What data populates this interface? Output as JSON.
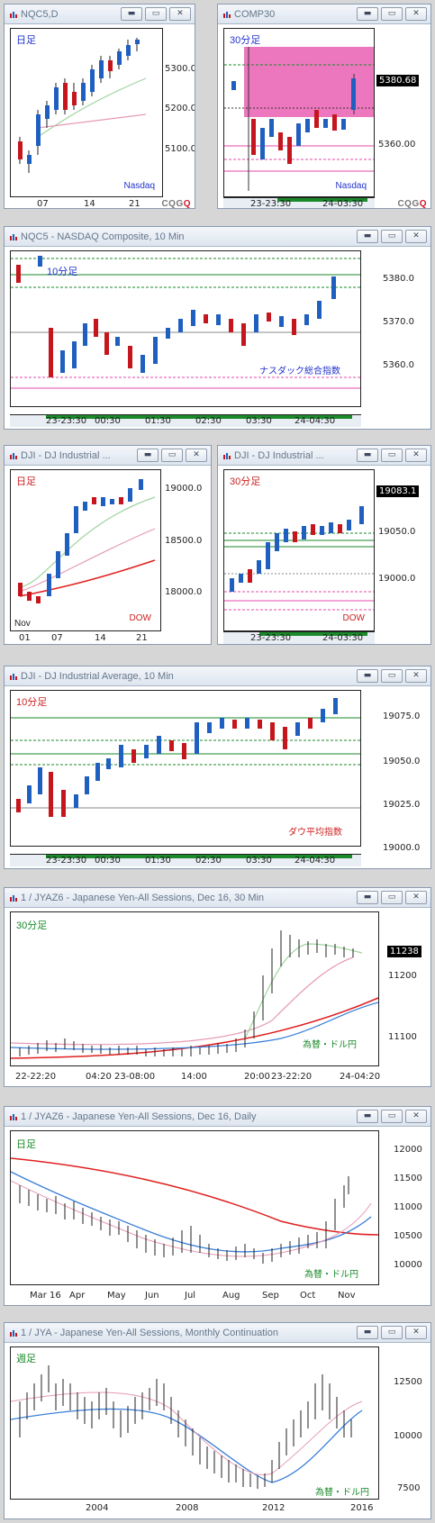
{
  "windows": [
    {
      "id": "w1",
      "title": "NQC5,D",
      "timeframe": "日足",
      "tf_color": "#2233cc",
      "instrument": "Nasdaq",
      "inst_color": "#2233cc",
      "y_labels": [
        "5300.0",
        "5200.0",
        "5100.0"
      ],
      "x_labels": [
        "07",
        "14",
        "21"
      ],
      "price_tag": ""
    },
    {
      "id": "w2",
      "title": "COMP30",
      "timeframe": "30分足",
      "tf_color": "#2233cc",
      "instrument": "Nasdaq",
      "inst_color": "#2233cc",
      "y_labels": [
        "5360.00"
      ],
      "x_labels": [
        "23-23:30",
        "24-03:30"
      ],
      "price_tag": "5380.68"
    },
    {
      "id": "w3",
      "title": "NQC5 - NASDAQ Composite, 10 Min",
      "timeframe": "10分足",
      "tf_color": "#2233cc",
      "instrument": "ナスダック総合指数",
      "inst_color": "#2233cc",
      "y_labels": [
        "5380.0",
        "5370.0",
        "5360.0"
      ],
      "x_labels": [
        "23-23:30",
        "00:30",
        "01:30",
        "02:30",
        "03:30",
        "24-04:30"
      ],
      "price_tag": ""
    },
    {
      "id": "w4",
      "title": "DJI - DJ Industrial ...",
      "timeframe": "日足",
      "tf_color": "#cc2222",
      "instrument": "DOW",
      "inst_color": "#cc2222",
      "y_labels": [
        "19000.0",
        "18500.0",
        "18000.0"
      ],
      "x_labels": [
        "01",
        "07",
        "14",
        "21"
      ],
      "extra_label": "Nov",
      "price_tag": ""
    },
    {
      "id": "w5",
      "title": "DJI - DJ Industrial ...",
      "timeframe": "30分足",
      "tf_color": "#cc2222",
      "instrument": "DOW",
      "inst_color": "#cc2222",
      "y_labels": [
        "19050.0",
        "19000.0"
      ],
      "x_labels": [
        "23-23:30",
        "24-03:30"
      ],
      "price_tag": "19083.1"
    },
    {
      "id": "w6",
      "title": "DJI - DJ Industrial Average, 10 Min",
      "timeframe": "10分足",
      "tf_color": "#cc2222",
      "instrument": "ダウ平均指数",
      "inst_color": "#cc2222",
      "y_labels": [
        "19075.0",
        "19050.0",
        "19025.0",
        "19000.0"
      ],
      "x_labels": [
        "23-23:30",
        "00:30",
        "01:30",
        "02:30",
        "03:30",
        "24-04:30"
      ],
      "price_tag": ""
    },
    {
      "id": "w7",
      "title": "1 / JYAZ6 - Japanese Yen-All Sessions, Dec 16, 30 Min",
      "timeframe": "30分足",
      "tf_color": "#1a8a2a",
      "instrument": "為替・ドル円",
      "inst_color": "#1a8a2a",
      "y_labels": [
        "11200",
        "11100"
      ],
      "x_labels": [
        "22-22:20",
        "04:20",
        "23-08:00",
        "14:00",
        "20:00",
        "23-22:20",
        "24-04:20"
      ],
      "price_tag": "11238"
    },
    {
      "id": "w8",
      "title": "1 / JYAZ6 - Japanese Yen-All Sessions, Dec 16, Daily",
      "timeframe": "日足",
      "tf_color": "#1a8a2a",
      "instrument": "為替・ドル円",
      "inst_color": "#1a8a2a",
      "y_labels": [
        "12000",
        "11500",
        "11000",
        "10500",
        "10000"
      ],
      "x_labels": [
        "Mar 16",
        "Apr",
        "May",
        "Jun",
        "Jul",
        "Aug",
        "Sep",
        "Oct",
        "Nov"
      ],
      "price_tag": ""
    },
    {
      "id": "w9",
      "title": "1 / JYA - Japanese Yen-All Sessions, Monthly Continuation",
      "timeframe": "週足",
      "tf_color": "#1a8a2a",
      "instrument": "為替・ドル円",
      "inst_color": "#1a8a2a",
      "y_labels": [
        "12500",
        "10000",
        "7500"
      ],
      "x_labels": [
        "2004",
        "2008",
        "2012",
        "2016"
      ],
      "price_tag": ""
    }
  ],
  "branding": {
    "cqg_prefix": "CQG",
    "cqg_suffix": "Q"
  },
  "window_buttons": {
    "minimize": "▬",
    "restore": "▭",
    "close": "✕"
  },
  "colors": {
    "up_candle": "#1f5fbf",
    "down_candle": "#c4161c",
    "ma_red": "#e02020",
    "ma_pink": "#e59ab5",
    "ma_green": "#9fd49f",
    "ma_blue": "#3a7fd8",
    "highlight": "#e64aa8"
  }
}
